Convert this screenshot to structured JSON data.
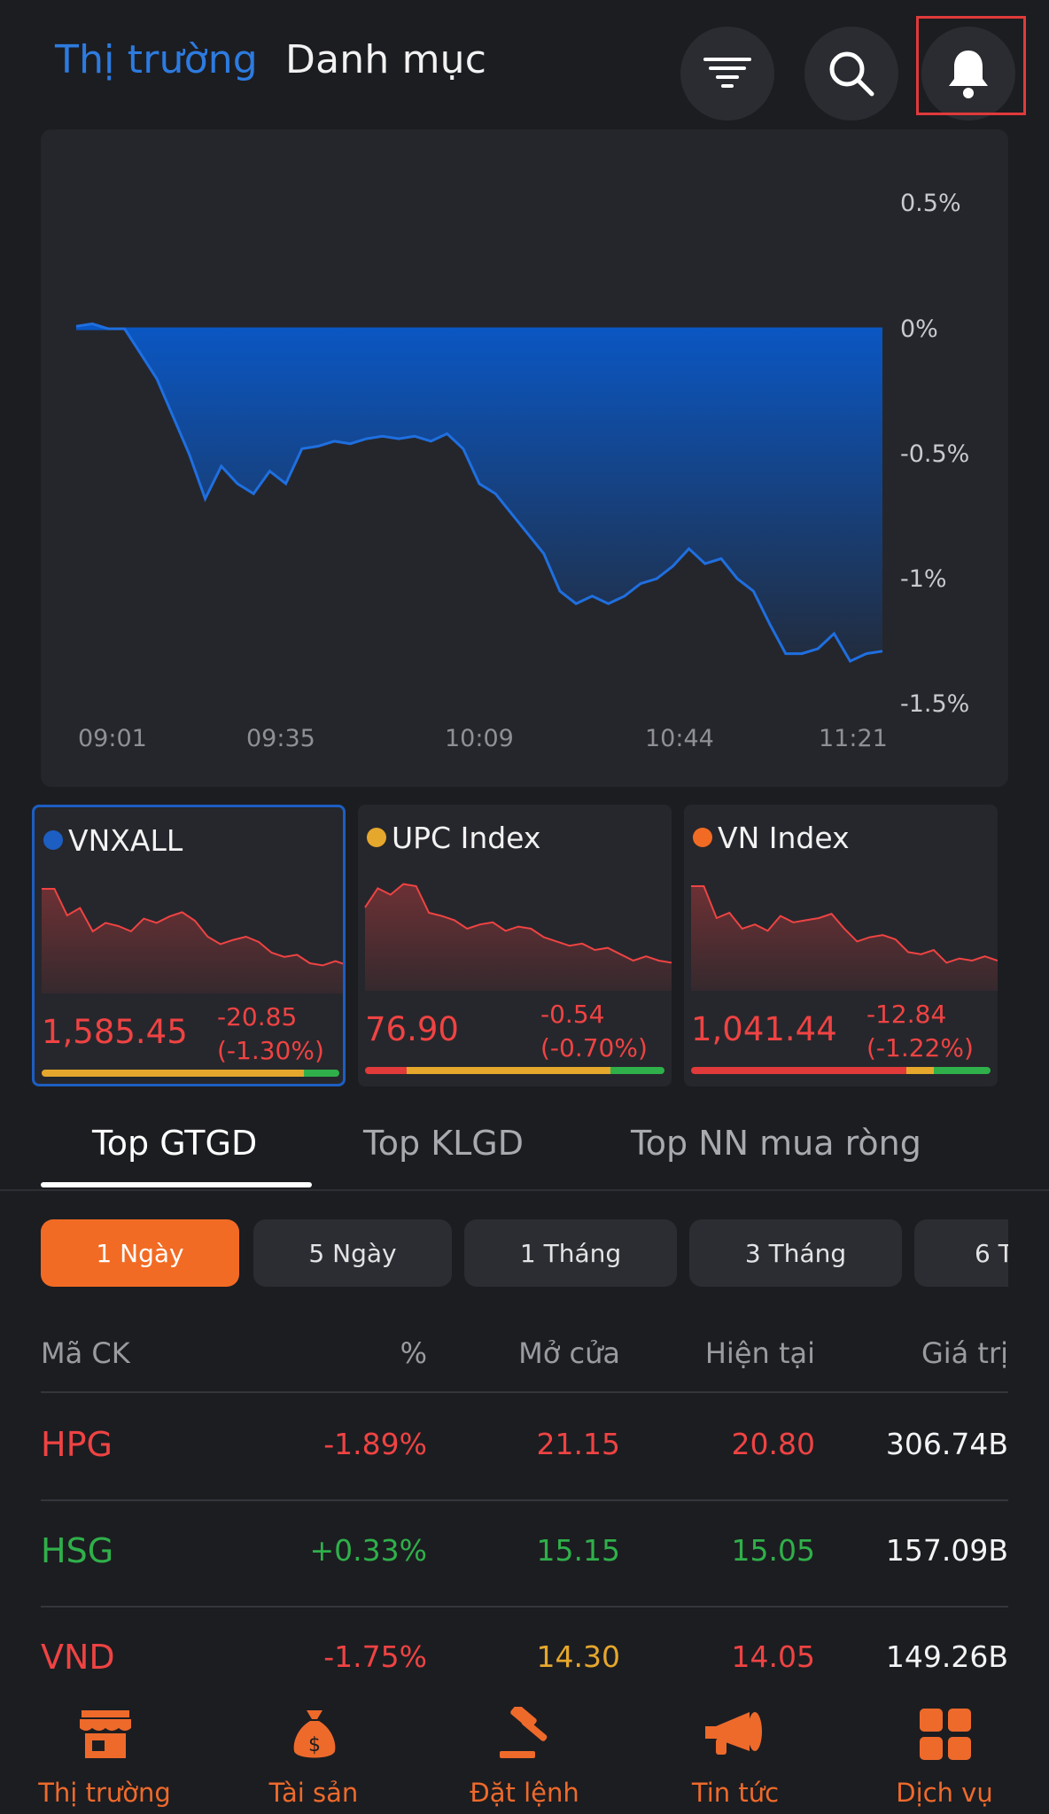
{
  "header": {
    "tab_market": "Thị trường",
    "tab_portfolio": "Danh mục"
  },
  "main_chart": {
    "y_labels": [
      "0.5%",
      "0%",
      "-0.5%",
      "-1%",
      "-1.5%"
    ],
    "x_labels": [
      "09:01",
      "09:35",
      "10:09",
      "10:44",
      "11:21"
    ]
  },
  "chart_data": {
    "type": "area",
    "title": "",
    "ylim": [
      -1.5,
      0.5
    ],
    "xlabel": "",
    "ylabel": "",
    "x": [
      "09:01",
      "09:05",
      "09:08",
      "09:10",
      "09:13",
      "09:15",
      "09:17",
      "09:19",
      "09:21",
      "09:24",
      "09:27",
      "09:30",
      "09:32",
      "09:35",
      "09:38",
      "09:40",
      "09:43",
      "09:46",
      "09:48",
      "09:51",
      "09:54",
      "09:57",
      "10:00",
      "10:03",
      "10:06",
      "10:09",
      "10:12",
      "10:15",
      "10:18",
      "10:21",
      "10:24",
      "10:27",
      "10:30",
      "10:33",
      "10:36",
      "10:39",
      "10:42",
      "10:44",
      "10:47",
      "10:50",
      "10:53",
      "10:56",
      "10:59",
      "11:02",
      "11:05",
      "11:08",
      "11:11",
      "11:14",
      "11:17",
      "11:19",
      "11:21"
    ],
    "values": [
      0.01,
      0.02,
      0.0,
      0.0,
      -0.1,
      -0.2,
      -0.35,
      -0.5,
      -0.68,
      -0.55,
      -0.62,
      -0.66,
      -0.57,
      -0.62,
      -0.48,
      -0.47,
      -0.45,
      -0.46,
      -0.44,
      -0.43,
      -0.44,
      -0.43,
      -0.45,
      -0.42,
      -0.48,
      -0.62,
      -0.66,
      -0.74,
      -0.82,
      -0.9,
      -1.05,
      -1.1,
      -1.07,
      -1.1,
      -1.07,
      -1.02,
      -1.0,
      -0.95,
      -0.88,
      -0.94,
      -0.92,
      -1.0,
      -1.05,
      -1.18,
      -1.3,
      -1.3,
      -1.28,
      -1.22,
      -1.33,
      -1.3,
      -1.29
    ]
  },
  "cards": [
    {
      "name": "VNXALL",
      "value": "1,585.45",
      "change": "-20.85",
      "pct": "(-1.30%)",
      "dot": "#1d5ec2",
      "bar": [
        [
          "#e03a3a",
          0.0
        ],
        [
          "#e6a72d",
          0.88
        ],
        [
          "#2fb04a",
          0.12
        ]
      ]
    },
    {
      "name": "UPC Index",
      "value": "76.90",
      "change": "-0.54",
      "pct": "(-0.70%)",
      "dot": "#e6a72d",
      "bar": [
        [
          "#e03a3a",
          0.14
        ],
        [
          "#e6a72d",
          0.68
        ],
        [
          "#2fb04a",
          0.18
        ]
      ]
    },
    {
      "name": "VN Index",
      "value": "1,041.44",
      "change": "-12.84",
      "pct": "(-1.22%)",
      "dot": "#f26b24",
      "bar": [
        [
          "#e03a3a",
          0.72
        ],
        [
          "#e6a72d",
          0.09
        ],
        [
          "#2fb04a",
          0.19
        ]
      ]
    }
  ],
  "section_tabs": [
    "Top GTGD",
    "Top KLGD",
    "Top NN mua ròng"
  ],
  "periods": [
    "1 Ngày",
    "5 Ngày",
    "1 Tháng",
    "3 Tháng",
    "6 T"
  ],
  "table": {
    "headers": [
      "Mã CK",
      "%",
      "Mở cửa",
      "Hiện tại",
      "Giá trị"
    ],
    "rows": [
      {
        "symbol": "HPG",
        "pct": "-1.89%",
        "open": "21.15",
        "current": "20.80",
        "value": "306.74B",
        "sym_color": "red",
        "pct_color": "red",
        "open_color": "red",
        "cur_color": "red"
      },
      {
        "symbol": "HSG",
        "pct": "+0.33%",
        "open": "15.15",
        "current": "15.05",
        "value": "157.09B",
        "sym_color": "green",
        "pct_color": "green",
        "open_color": "green",
        "cur_color": "green"
      },
      {
        "symbol": "VND",
        "pct": "-1.75%",
        "open": "14.30",
        "current": "14.05",
        "value": "149.26B",
        "sym_color": "red",
        "pct_color": "red",
        "open_color": "yellow",
        "cur_color": "red"
      }
    ]
  },
  "bottom_nav": [
    "Thị trường",
    "Tài sản",
    "Đặt lệnh",
    "Tin tức",
    "Dịch vụ"
  ],
  "colors": {
    "accent": "#2d7be0",
    "orange": "#f26b24",
    "down": "#ef4343",
    "up": "#2fb04a",
    "ref": "#e6a72d"
  }
}
